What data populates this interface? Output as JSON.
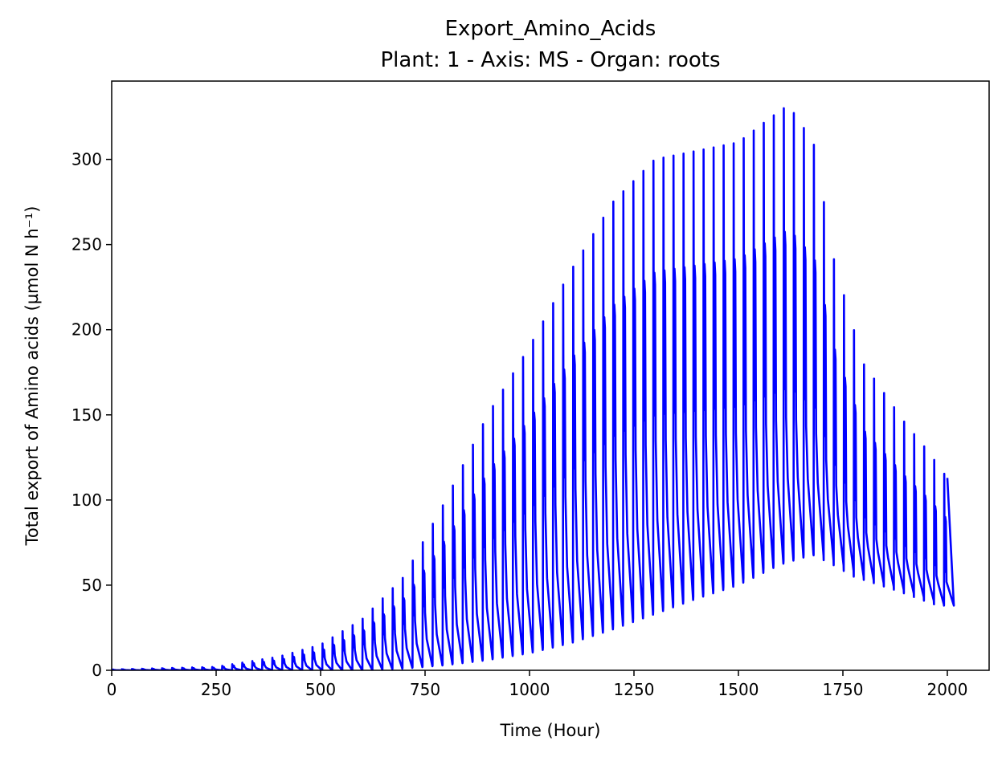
{
  "chart_data": {
    "type": "line",
    "title": "Export_Amino_Acids",
    "subtitle": "Plant: 1 - Axis: MS - Organ: roots",
    "xlabel": "Time (Hour)",
    "ylabel": "Total export of Amino acids (µmol N h⁻¹)",
    "xlim": [
      0,
      2100
    ],
    "ylim": [
      0,
      346
    ],
    "xticks": [
      0,
      250,
      500,
      750,
      1000,
      1250,
      1500,
      1750,
      2000
    ],
    "xtick_labels": [
      "0",
      "250",
      "500",
      "750",
      "1000",
      "1250",
      "1500",
      "1750",
      "2000"
    ],
    "yticks": [
      0,
      50,
      100,
      150,
      200,
      250,
      300
    ],
    "ytick_labels": [
      "0",
      "50",
      "100",
      "150",
      "200",
      "250",
      "300"
    ],
    "grid": false,
    "legend": "none",
    "series": [
      {
        "color": "#0000ff",
        "pattern": "daily oscillation, period 24 h",
        "x_range": [
          0,
          2000
        ],
        "daily_peaks": {
          "x": [
            0,
            250,
            300,
            400,
            500,
            600,
            700,
            800,
            900,
            1000,
            1100,
            1200,
            1300,
            1400,
            1500,
            1580,
            1620,
            1680,
            1730,
            1800,
            1900,
            1950,
            2000
          ],
          "y": [
            0.5,
            2,
            4,
            8,
            15,
            30,
            55,
            100,
            150,
            190,
            235,
            275,
            300,
            305,
            310,
            325,
            332,
            310,
            240,
            180,
            145,
            130,
            113
          ]
        },
        "daily_troughs": {
          "x": [
            0,
            250,
            400,
            500,
            600,
            700,
            800,
            900,
            1000,
            1100,
            1200,
            1300,
            1400,
            1500,
            1600,
            1680,
            1700,
            1750,
            1800,
            1900,
            2000
          ],
          "y": [
            0,
            0,
            0,
            0,
            0,
            1,
            3,
            6,
            10,
            16,
            24,
            33,
            42,
            50,
            62,
            68,
            68,
            62,
            55,
            47,
            38
          ]
        }
      }
    ]
  }
}
